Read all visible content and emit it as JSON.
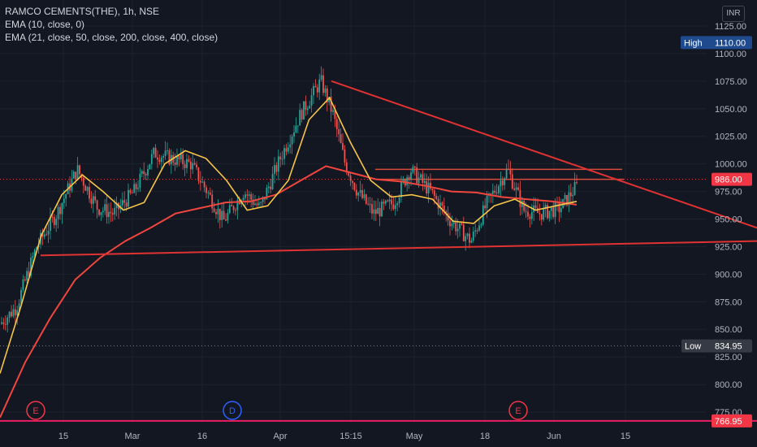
{
  "header": {
    "symbol": "RAMCO CEMENTS(THE), 1h, NSE",
    "ema1": "EMA (10, close, 0)",
    "ema2": "EMA (21, close, 50, close, 200, close, 400, close)",
    "currency": "INR"
  },
  "price_axis": {
    "ticks": [
      "1125.00",
      "1100.00",
      "1075.00",
      "1050.00",
      "1025.00",
      "1000.00",
      "975.00",
      "950.00",
      "925.00",
      "900.00",
      "875.00",
      "850.00",
      "825.00",
      "800.00",
      "775.00"
    ],
    "high_label": "High",
    "high_value": "1110.00",
    "current_value": "986.00",
    "low_label": "Low",
    "low_value": "834.95",
    "bottom_value": "766.95"
  },
  "time_axis": {
    "labels": [
      "15",
      "Mar",
      "16",
      "Apr",
      "15:15",
      "May",
      "18",
      "Jun",
      "15"
    ]
  },
  "events": [
    {
      "letter": "E",
      "color": "#f23645"
    },
    {
      "letter": "D",
      "color": "#2962ff"
    },
    {
      "letter": "E",
      "color": "#f23645"
    }
  ],
  "colors": {
    "background": "#131722",
    "up": "#26a69a",
    "down": "#ef5350",
    "ema_fast": "#f7c547",
    "ema_slow": "#f0463e",
    "trendline": "#e03232",
    "high_badge": "#1f4b8e",
    "current_badge": "#f23645"
  },
  "chart_data": {
    "type": "candlestick",
    "ylim": [
      760,
      1135
    ],
    "series": [
      {
        "name": "EMA (10, close, 0)",
        "style": "line",
        "approx_values": [
          810,
          870,
          935,
          972,
          990,
          975,
          958,
          965,
          1000,
          1012,
          1005,
          985,
          958,
          962,
          985,
          1040,
          1060,
          1020,
          985,
          970,
          972,
          968,
          948,
          946,
          962,
          968,
          958,
          962,
          966
        ]
      },
      {
        "name": "EMA (21, close, 50, close, 200, close, 400, close)",
        "style": "line",
        "approx_values": [
          770,
          820,
          860,
          895,
          915,
          930,
          942,
          955,
          960,
          965,
          966,
          972,
          985,
          998,
          992,
          986,
          984,
          980,
          975,
          974,
          970,
          968,
          966,
          963
        ]
      }
    ],
    "price_levels": {
      "high": 1110.0,
      "current": 986.0,
      "low": 834.95,
      "bottom": 766.95
    },
    "trendlines": [
      {
        "name": "upper",
        "from": [
          408,
          1075
        ],
        "to": [
          932,
          942
        ]
      },
      {
        "name": "lower",
        "from": [
          50,
          917
        ],
        "to": [
          932,
          930
        ]
      }
    ]
  }
}
